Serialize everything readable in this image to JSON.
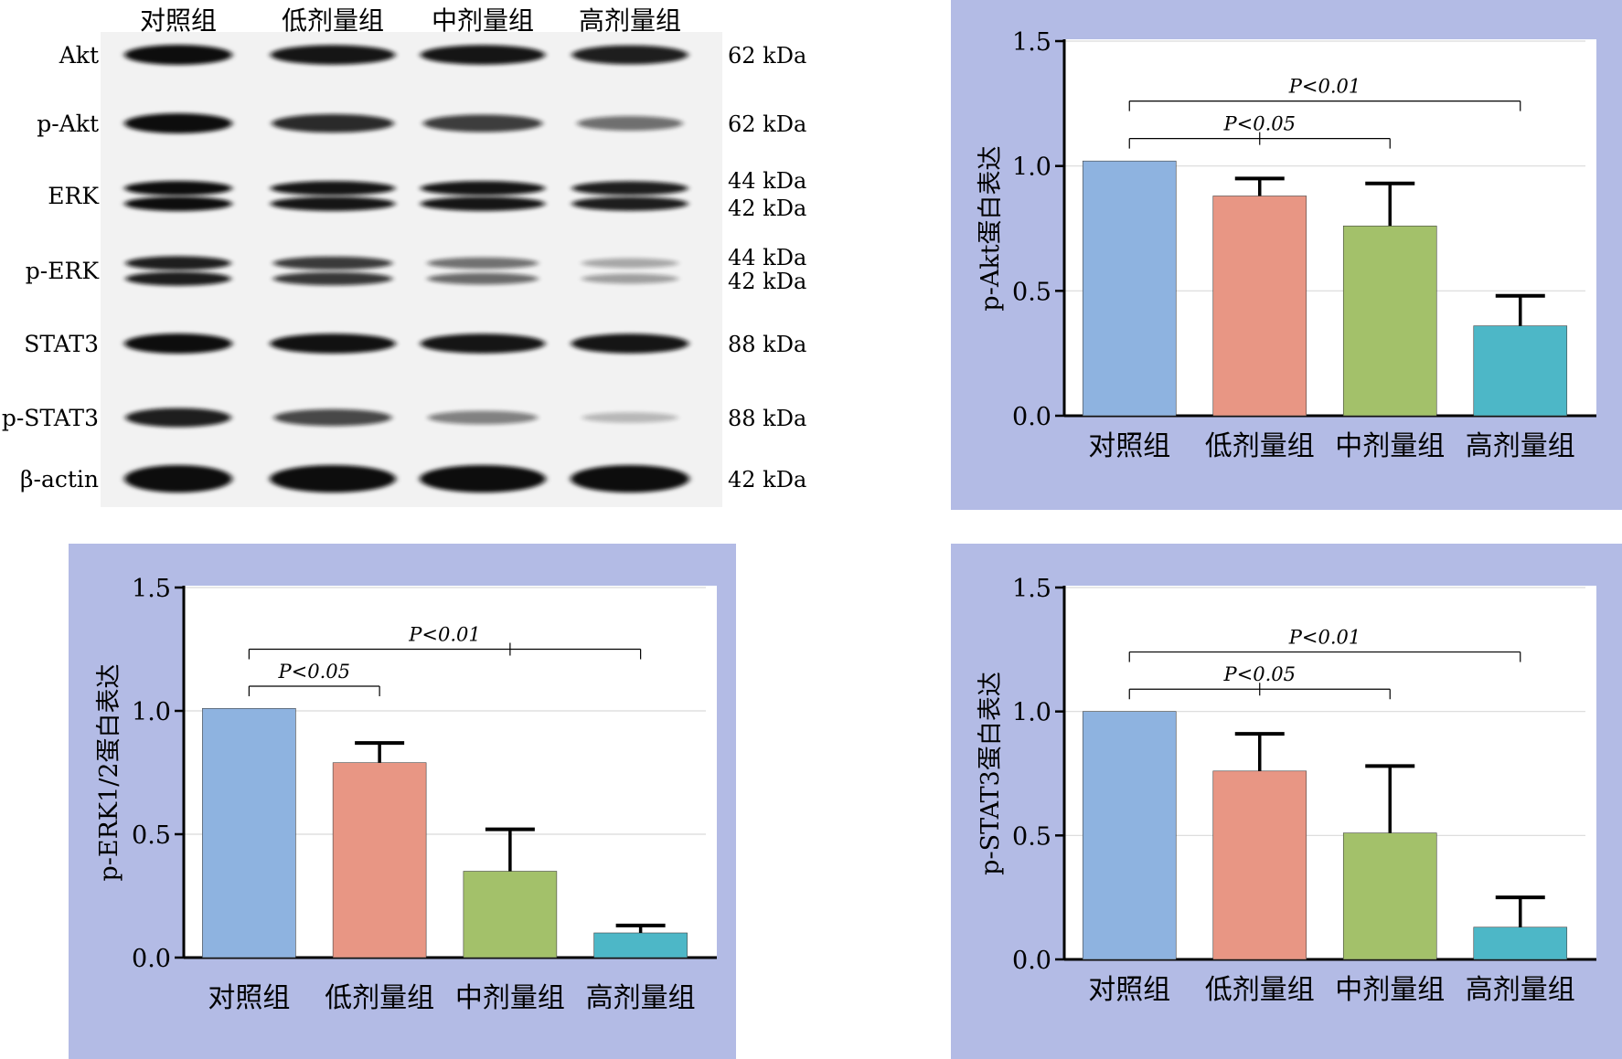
{
  "blot": {
    "groups": [
      "对照组",
      "低剂量组",
      "中剂量组",
      "高剂量组"
    ],
    "rows": [
      {
        "protein": "Akt",
        "sizes": [
          "62 kDa"
        ],
        "intensity": [
          1.0,
          0.95,
          0.95,
          0.9
        ],
        "double": false
      },
      {
        "protein": "p-Akt",
        "sizes": [
          "62 kDa"
        ],
        "intensity": [
          1.0,
          0.85,
          0.75,
          0.5
        ],
        "double": false
      },
      {
        "protein": "ERK",
        "sizes": [
          "44 kDa",
          "42 kDa"
        ],
        "intensity": [
          1.0,
          0.95,
          0.95,
          0.9
        ],
        "double": true
      },
      {
        "protein": "p-ERK",
        "sizes": [
          "44 kDa",
          "42 kDa"
        ],
        "intensity": [
          0.9,
          0.75,
          0.45,
          0.15
        ],
        "double": true
      },
      {
        "protein": "STAT3",
        "sizes": [
          "88 kDa"
        ],
        "intensity": [
          1.0,
          0.98,
          0.95,
          0.95
        ],
        "double": false
      },
      {
        "protein": "p-STAT3",
        "sizes": [
          "88 kDa"
        ],
        "intensity": [
          0.9,
          0.7,
          0.4,
          0.12
        ],
        "double": false
      },
      {
        "protein": "β-actin",
        "sizes": [
          "42 kDa"
        ],
        "intensity": [
          1.0,
          1.0,
          1.0,
          1.0
        ],
        "double": false
      }
    ]
  },
  "colors": {
    "panel_bg": "#b3bbe5",
    "bars": [
      "#8eb3e0",
      "#e89684",
      "#a3c16a",
      "#4db7c7"
    ],
    "grid": "#d9d9d9",
    "axis": "#000000"
  },
  "chart_data": [
    {
      "type": "bar",
      "categories": [
        "对照组",
        "低剂量组",
        "中剂量组",
        "高剂量组"
      ],
      "values": [
        1.02,
        0.88,
        0.76,
        0.36
      ],
      "errors": [
        0,
        0.07,
        0.17,
        0.12
      ],
      "ylabel": "p-Akt蛋白表达",
      "ylim": [
        0,
        1.5
      ],
      "yticks": [
        "0.0",
        "0.5",
        "1.0",
        "1.5"
      ],
      "grid": true,
      "annotations": [
        {
          "label": "P<0.05",
          "from": 0,
          "to": 2,
          "mid": 1
        },
        {
          "label": "P<0.01",
          "from": 0,
          "to": 3,
          "mid": null
        }
      ]
    },
    {
      "type": "bar",
      "categories": [
        "对照组",
        "低剂量组",
        "中剂量组",
        "高剂量组"
      ],
      "values": [
        1.01,
        0.79,
        0.35,
        0.1
      ],
      "errors": [
        0,
        0.08,
        0.17,
        0.03
      ],
      "ylabel": "p-ERK1/2蛋白表达",
      "ylim": [
        0,
        1.5
      ],
      "yticks": [
        "0.0",
        "0.5",
        "1.0",
        "1.5"
      ],
      "grid": true,
      "annotations": [
        {
          "label": "P<0.05",
          "from": 0,
          "to": 1,
          "mid": null
        },
        {
          "label": "P<0.01",
          "from": 0,
          "to": 3,
          "mid": 2
        }
      ]
    },
    {
      "type": "bar",
      "categories": [
        "对照组",
        "低剂量组",
        "中剂量组",
        "高剂量组"
      ],
      "values": [
        1.0,
        0.76,
        0.51,
        0.13
      ],
      "errors": [
        0,
        0.15,
        0.27,
        0.12
      ],
      "ylabel": "p-STAT3蛋白表达",
      "ylim": [
        0,
        1.5
      ],
      "yticks": [
        "0.0",
        "0.5",
        "1.0",
        "1.5"
      ],
      "grid": true,
      "annotations": [
        {
          "label": "P<0.05",
          "from": 0,
          "to": 2,
          "mid": 1
        },
        {
          "label": "P<0.01",
          "from": 0,
          "to": 3,
          "mid": null
        }
      ]
    }
  ]
}
